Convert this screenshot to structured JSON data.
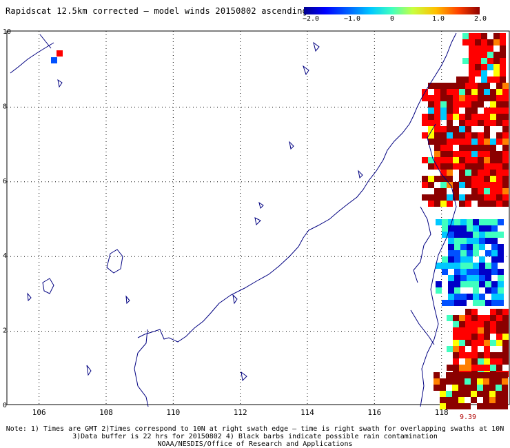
{
  "title": "Rapidscat 12.5km corrected – model winds 20150802 ascending",
  "colorbar": {
    "ticks": [
      "−2.0",
      "−1.0",
      "0",
      "1.0",
      "2.0"
    ],
    "tick_values": [
      -2.0,
      -1.0,
      0,
      1.0,
      2.0
    ]
  },
  "map": {
    "lon_labels": [
      "106",
      "108",
      "110",
      "112",
      "114",
      "116",
      "118"
    ],
    "lat_labels": [
      "0",
      "2",
      "4",
      "6",
      "8",
      "10"
    ]
  },
  "timestamp": "9.39",
  "notes": [
    "Note: 1) Times are GMT 2)Times correspond to 10N at right swath edge – time is right swath for overlapping swaths at 10N",
    "3)Data buffer is 22 hrs for 20150802 4) Black barbs indicate possible rain contamination",
    "NOAA/NESDIS/Office of Research and Applications"
  ],
  "colors": {
    "coast": "#000080",
    "grid": "#000000",
    "swath_palette": [
      "#0000c8",
      "#0050ff",
      "#00c8ff",
      "#40ffc0",
      "#ffff00",
      "#ff8000",
      "#ff0000",
      "#8b0000"
    ]
  }
}
